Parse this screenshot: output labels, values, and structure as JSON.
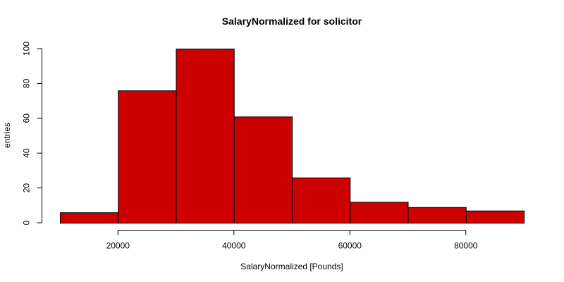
{
  "chart_data": {
    "type": "bar",
    "title": "SalaryNormalized for solicitor",
    "xlabel": "SalaryNormalized [Pounds]",
    "ylabel": "entries",
    "bin_edges": [
      10000,
      20000,
      30000,
      40000,
      50000,
      60000,
      70000,
      80000,
      90000
    ],
    "values": [
      6,
      76,
      100,
      61,
      26,
      12,
      9,
      7
    ],
    "x_ticks": [
      20000,
      40000,
      60000,
      80000
    ],
    "x_tick_labels": [
      "20000",
      "40000",
      "60000",
      "80000"
    ],
    "y_ticks": [
      0,
      20,
      40,
      60,
      80,
      100
    ],
    "y_tick_labels": [
      "0",
      "20",
      "40",
      "60",
      "80",
      "100"
    ],
    "xlim": [
      10000,
      90000
    ],
    "ylim": [
      0,
      100
    ],
    "grid": false,
    "colors": {
      "bar_fill": "#cc0000",
      "bar_stroke": "#000000"
    }
  }
}
